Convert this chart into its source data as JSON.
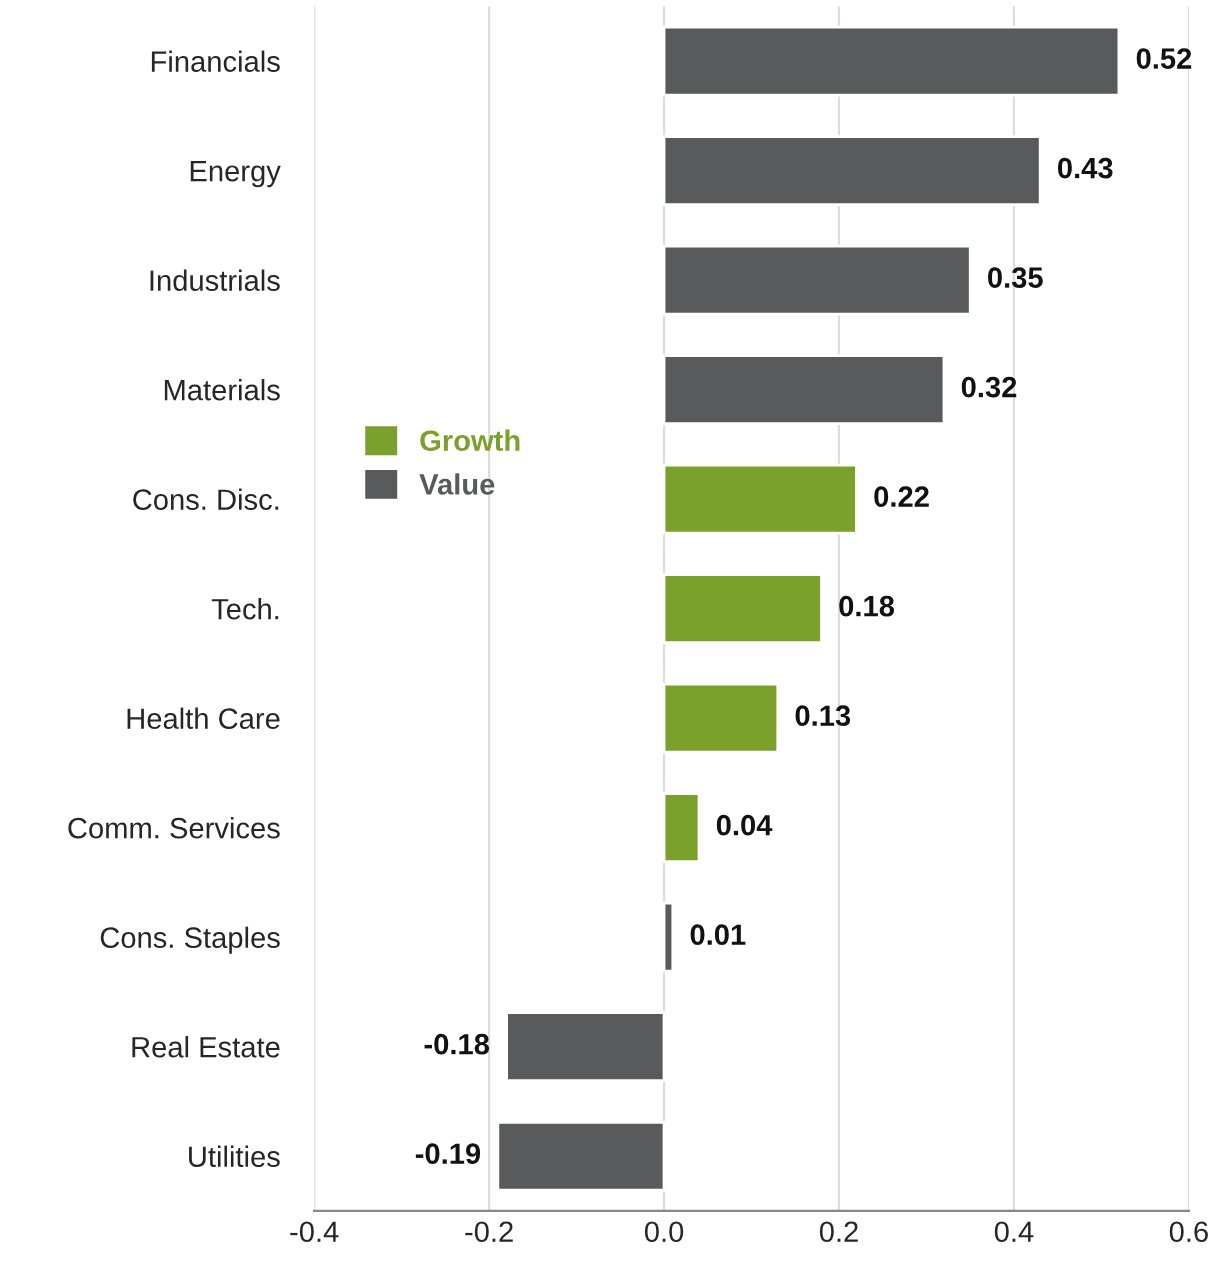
{
  "chart_data": {
    "type": "bar",
    "orientation": "horizontal",
    "categories": [
      "Financials",
      "Energy",
      "Industrials",
      "Materials",
      "Cons. Disc.",
      "Tech.",
      "Health Care",
      "Comm. Services",
      "Cons. Staples",
      "Real Estate",
      "Utilities"
    ],
    "series": [
      {
        "name": "Growth",
        "color": "#7aa12c",
        "values": [
          null,
          null,
          null,
          null,
          0.22,
          0.18,
          0.13,
          0.04,
          null,
          null,
          null
        ]
      },
      {
        "name": "Value",
        "color": "#595a5c",
        "values": [
          0.52,
          0.43,
          0.35,
          0.32,
          null,
          null,
          null,
          null,
          0.01,
          -0.18,
          -0.19
        ]
      }
    ],
    "xlim": [
      -0.4,
      0.6
    ],
    "xticks": [
      -0.4,
      -0.2,
      {
        "value": 0,
        "label": "0.0"
      },
      0.2,
      0.4,
      0.6
    ],
    "grid": "x",
    "legend": "center left",
    "data_labels": true
  }
}
